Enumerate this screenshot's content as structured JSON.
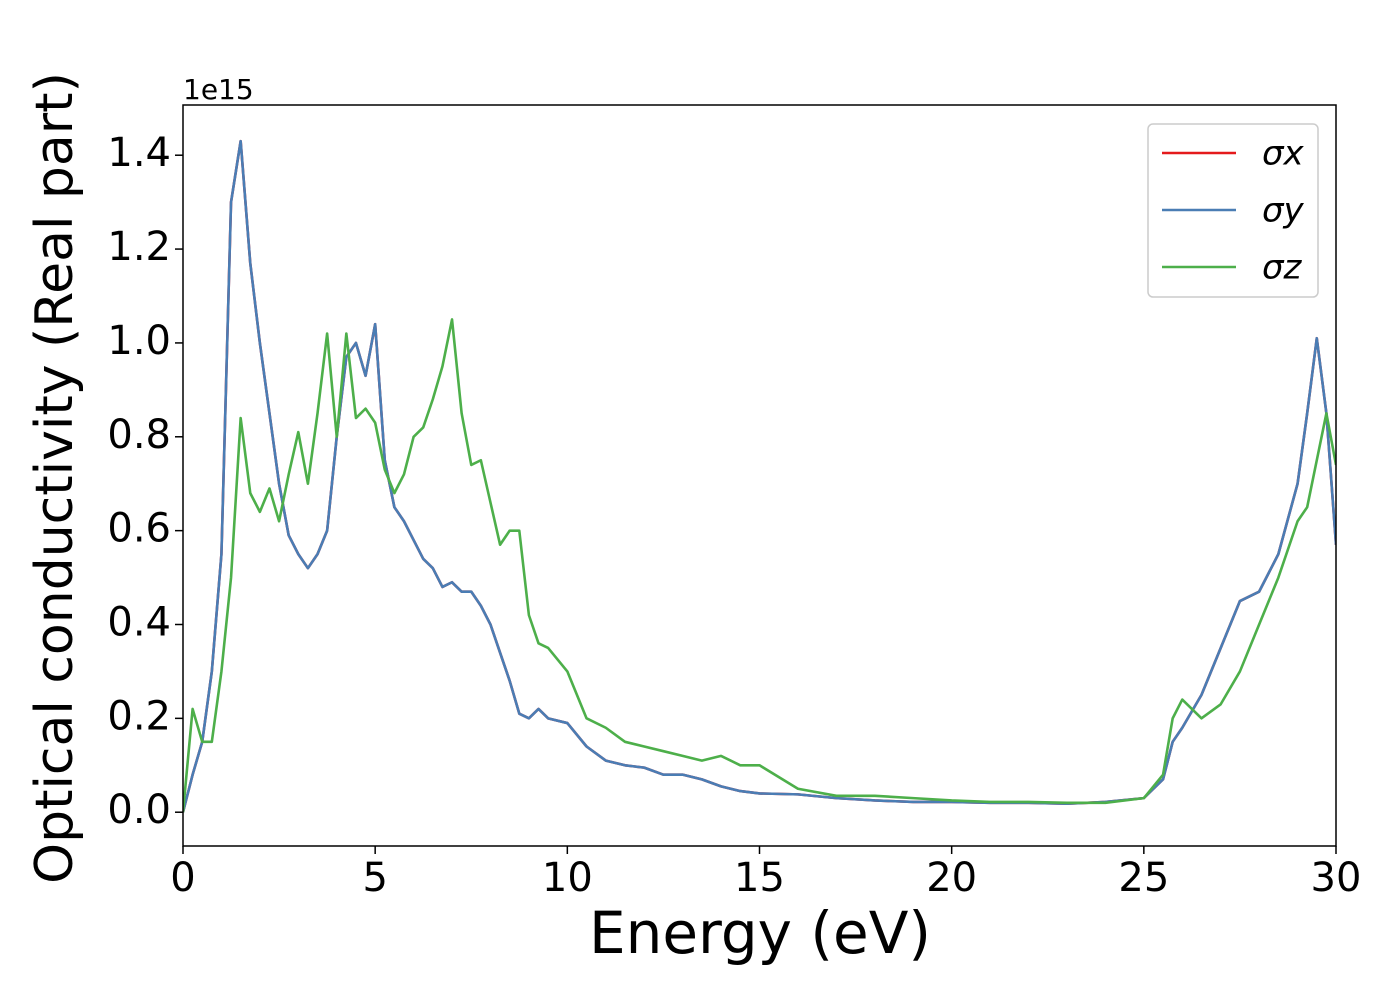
{
  "chart_data": {
    "type": "line",
    "xlabel": "Energy (eV)",
    "ylabel": "Optical conductivity (Real part)",
    "y_offset_label": "1e15",
    "xlim": [
      0,
      30
    ],
    "xticks": [
      0,
      5,
      10,
      15,
      20,
      25,
      30
    ],
    "ylim": [
      -0.072,
      1.507
    ],
    "yticks": [
      {
        "value": 0,
        "label": "0.0"
      },
      0.2,
      0.4,
      0.6,
      0.8,
      {
        "value": 1,
        "label": "1.0"
      },
      1.2,
      1.4
    ],
    "legend": "upper right",
    "grid": false,
    "x": [
      0,
      0.25,
      0.5,
      0.75,
      1,
      1.25,
      1.5,
      1.75,
      2,
      2.25,
      2.5,
      2.75,
      3,
      3.25,
      3.5,
      3.75,
      4,
      4.25,
      4.5,
      4.75,
      5,
      5.25,
      5.5,
      5.75,
      6,
      6.25,
      6.5,
      6.75,
      7,
      7.25,
      7.5,
      7.75,
      8,
      8.25,
      8.5,
      8.75,
      9,
      9.25,
      9.5,
      10,
      10.5,
      11,
      11.5,
      12,
      12.5,
      13,
      13.5,
      14,
      14.5,
      15,
      16,
      17,
      18,
      19,
      20,
      21,
      22,
      23,
      24,
      25,
      25.5,
      25.75,
      26,
      26.5,
      27,
      27.5,
      28,
      28.5,
      29,
      29.25,
      29.5,
      29.75,
      30
    ],
    "series": [
      {
        "name": "σx",
        "color": "#e41a1c",
        "values": [
          0,
          0.08,
          0.15,
          0.3,
          0.55,
          1.3,
          1.43,
          1.17,
          1.0,
          0.85,
          0.7,
          0.59,
          0.55,
          0.52,
          0.55,
          0.6,
          0.8,
          0.97,
          1.0,
          0.93,
          1.04,
          0.75,
          0.65,
          0.62,
          0.58,
          0.54,
          0.52,
          0.48,
          0.49,
          0.47,
          0.47,
          0.44,
          0.4,
          0.34,
          0.28,
          0.21,
          0.2,
          0.22,
          0.2,
          0.19,
          0.14,
          0.11,
          0.1,
          0.095,
          0.08,
          0.08,
          0.07,
          0.055,
          0.045,
          0.04,
          0.038,
          0.03,
          0.025,
          0.022,
          0.022,
          0.02,
          0.02,
          0.018,
          0.022,
          0.03,
          0.07,
          0.15,
          0.18,
          0.25,
          0.35,
          0.45,
          0.47,
          0.55,
          0.7,
          0.85,
          1.01,
          0.85,
          0.57
        ]
      },
      {
        "name": "σy",
        "color": "#4a7db4",
        "values": [
          0,
          0.08,
          0.15,
          0.3,
          0.55,
          1.3,
          1.43,
          1.17,
          1.0,
          0.85,
          0.7,
          0.59,
          0.55,
          0.52,
          0.55,
          0.6,
          0.8,
          0.97,
          1.0,
          0.93,
          1.04,
          0.75,
          0.65,
          0.62,
          0.58,
          0.54,
          0.52,
          0.48,
          0.49,
          0.47,
          0.47,
          0.44,
          0.4,
          0.34,
          0.28,
          0.21,
          0.2,
          0.22,
          0.2,
          0.19,
          0.14,
          0.11,
          0.1,
          0.095,
          0.08,
          0.08,
          0.07,
          0.055,
          0.045,
          0.04,
          0.038,
          0.03,
          0.025,
          0.022,
          0.022,
          0.02,
          0.02,
          0.018,
          0.022,
          0.03,
          0.07,
          0.15,
          0.18,
          0.25,
          0.35,
          0.45,
          0.47,
          0.55,
          0.7,
          0.85,
          1.01,
          0.85,
          0.57
        ]
      },
      {
        "name": "σz",
        "color": "#4daf4a",
        "values": [
          0,
          0.22,
          0.15,
          0.15,
          0.3,
          0.5,
          0.84,
          0.68,
          0.64,
          0.69,
          0.62,
          0.72,
          0.81,
          0.7,
          0.85,
          1.02,
          0.8,
          1.02,
          0.84,
          0.86,
          0.83,
          0.73,
          0.68,
          0.72,
          0.8,
          0.82,
          0.88,
          0.95,
          1.05,
          0.85,
          0.74,
          0.75,
          0.66,
          0.57,
          0.6,
          0.6,
          0.42,
          0.36,
          0.35,
          0.3,
          0.2,
          0.18,
          0.15,
          0.14,
          0.13,
          0.12,
          0.11,
          0.12,
          0.1,
          0.1,
          0.05,
          0.035,
          0.035,
          0.03,
          0.025,
          0.022,
          0.022,
          0.02,
          0.02,
          0.03,
          0.08,
          0.2,
          0.24,
          0.2,
          0.23,
          0.3,
          0.4,
          0.5,
          0.62,
          0.65,
          0.75,
          0.85,
          0.74
        ]
      }
    ]
  }
}
